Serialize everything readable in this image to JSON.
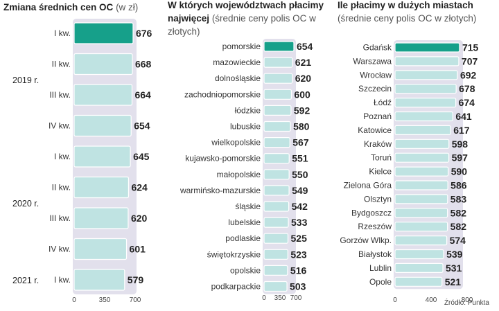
{
  "colors": {
    "highlight": "#16a08a",
    "bar": "#bfe3e2",
    "track": "#e2e0ec",
    "value_text": "#222222"
  },
  "chart_data": [
    {
      "type": "bar",
      "orientation": "horizontal",
      "title": "Zmiana średnich cen OC",
      "subtitle": "(w zł)",
      "categories": [
        "I kw.",
        "II kw.",
        "III kw.",
        "IV kw.",
        "I kw.",
        "II kw.",
        "III kw.",
        "IV kw.",
        "I kw."
      ],
      "groups": [
        {
          "label": "2019 r.",
          "from": 0,
          "to": 3
        },
        {
          "label": "2020 r.",
          "from": 4,
          "to": 7
        },
        {
          "label": "2021 r.",
          "from": 8,
          "to": 8
        }
      ],
      "values": [
        676,
        668,
        664,
        654,
        645,
        624,
        620,
        601,
        579
      ],
      "highlight_index": 0,
      "xticks": [
        "0",
        "350",
        "700"
      ],
      "xlim": [
        0,
        700
      ]
    },
    {
      "type": "bar",
      "orientation": "horizontal",
      "title": "W których województwach płacimy najwięcej",
      "subtitle": "(średnie ceny polis OC w złotych)",
      "categories": [
        "pomorskie",
        "mazowieckie",
        "dolnośląskie",
        "zachodniopomorskie",
        "łódzkie",
        "lubuskie",
        "wielkopolskie",
        "kujawsko-pomorskie",
        "małopolskie",
        "warmińsko-mazurskie",
        "śląskie",
        "lubelskie",
        "podlaskie",
        "świętokrzyskie",
        "opolskie",
        "podkarpackie"
      ],
      "values": [
        654,
        621,
        620,
        600,
        592,
        580,
        567,
        551,
        550,
        549,
        542,
        533,
        525,
        523,
        516,
        503
      ],
      "highlight_index": 0,
      "xticks": [
        "0",
        "350",
        "700"
      ],
      "xlim": [
        0,
        700
      ]
    },
    {
      "type": "bar",
      "orientation": "horizontal",
      "title": "Ile płacimy w dużych miastach",
      "subtitle": "(średnie ceny polis OC w złotych)",
      "categories": [
        "Gdańsk",
        "Warszawa",
        "Wrocław",
        "Szczecin",
        "Łódź",
        "Poznań",
        "Katowice",
        "Kraków",
        "Toruń",
        "Kielce",
        "Zielona Góra",
        "Olsztyn",
        "Bydgoszcz",
        "Rzeszów",
        "Gorzów Wlkp.",
        "Białystok",
        "Lublin",
        "Opole"
      ],
      "values": [
        715,
        707,
        692,
        678,
        674,
        641,
        617,
        598,
        597,
        590,
        586,
        583,
        582,
        582,
        574,
        539,
        531,
        521
      ],
      "highlight_index": 0,
      "xticks": [
        "0",
        "400",
        "800"
      ],
      "xlim": [
        0,
        800
      ]
    }
  ],
  "source": "Źródło: Punkta"
}
